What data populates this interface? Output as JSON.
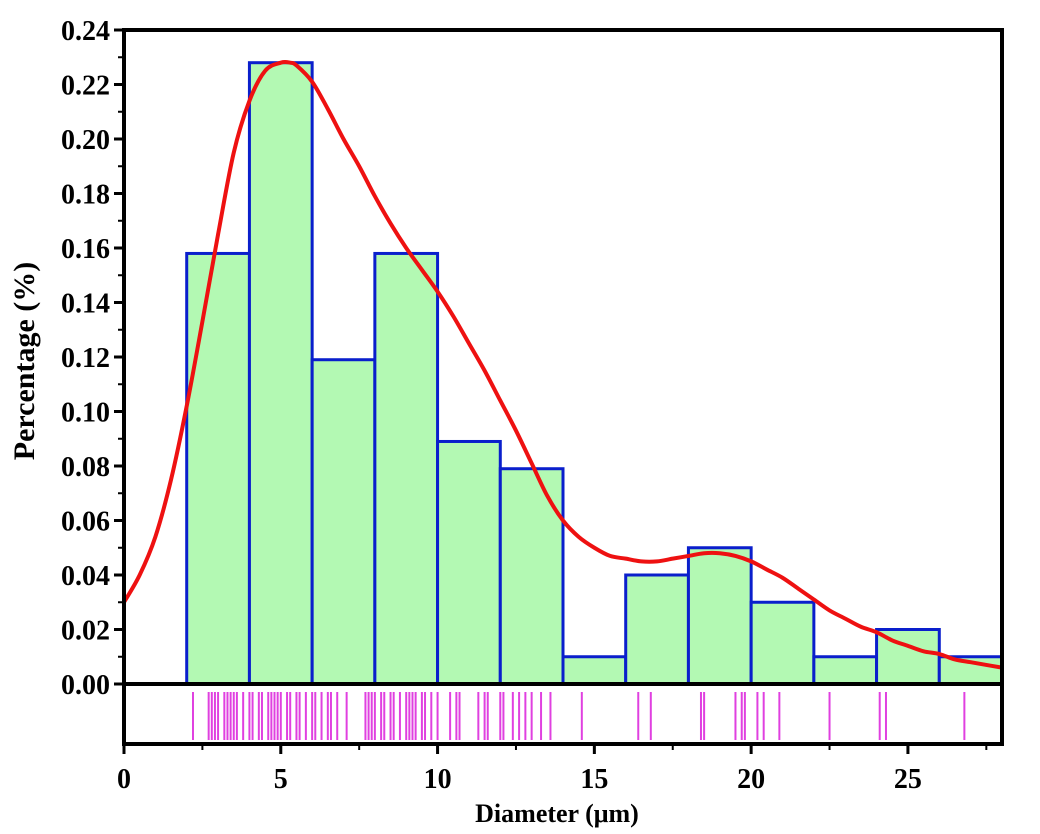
{
  "chart_data": {
    "type": "bar",
    "subtype": "histogram-with-kde-and-rug",
    "xlabel": "Diameter (μm)",
    "ylabel": "Percentage (%)",
    "xlim": [
      0,
      28
    ],
    "ylim": [
      0,
      0.24
    ],
    "x_ticks": [
      0,
      5,
      10,
      15,
      20,
      25
    ],
    "x_tick_labels": [
      "0",
      "5",
      "10",
      "15",
      "20",
      "25"
    ],
    "y_ticks": [
      0,
      0.02,
      0.04,
      0.06,
      0.08,
      0.1,
      0.12,
      0.14,
      0.16,
      0.18,
      0.2,
      0.22,
      0.24
    ],
    "y_tick_labels": [
      "0.00",
      "0.02",
      "0.04",
      "0.06",
      "0.08",
      "0.10",
      "0.12",
      "0.14",
      "0.16",
      "0.18",
      "0.20",
      "0.22",
      "0.24"
    ],
    "bin_width": 2,
    "bins": [
      {
        "start": 2,
        "end": 4,
        "value": 0.158
      },
      {
        "start": 4,
        "end": 6,
        "value": 0.228
      },
      {
        "start": 6,
        "end": 8,
        "value": 0.119
      },
      {
        "start": 8,
        "end": 10,
        "value": 0.158
      },
      {
        "start": 10,
        "end": 12,
        "value": 0.089
      },
      {
        "start": 12,
        "end": 14,
        "value": 0.079
      },
      {
        "start": 14,
        "end": 16,
        "value": 0.01
      },
      {
        "start": 16,
        "end": 18,
        "value": 0.04
      },
      {
        "start": 18,
        "end": 20,
        "value": 0.05
      },
      {
        "start": 20,
        "end": 22,
        "value": 0.03
      },
      {
        "start": 22,
        "end": 24,
        "value": 0.01
      },
      {
        "start": 24,
        "end": 26,
        "value": 0.02
      },
      {
        "start": 26,
        "end": 28,
        "value": 0.01
      }
    ],
    "kde_curve": {
      "x": [
        0,
        0.5,
        1,
        1.5,
        2,
        2.5,
        3,
        3.5,
        4,
        4.5,
        5,
        5.3,
        5.5,
        6,
        6.5,
        7,
        7.5,
        8,
        8.5,
        9,
        9.5,
        10,
        10.5,
        11,
        11.5,
        12,
        12.5,
        13,
        13.5,
        14,
        14.5,
        15,
        15.5,
        16,
        16.5,
        17,
        17.5,
        18,
        18.5,
        19,
        19.5,
        20,
        20.5,
        21,
        21.5,
        22,
        22.5,
        23,
        23.5,
        24,
        24.5,
        25,
        25.5,
        26,
        26.5,
        27,
        27.5,
        28
      ],
      "y": [
        0.03,
        0.04,
        0.054,
        0.075,
        0.102,
        0.133,
        0.165,
        0.195,
        0.214,
        0.225,
        0.228,
        0.228,
        0.227,
        0.221,
        0.211,
        0.2,
        0.19,
        0.179,
        0.169,
        0.16,
        0.152,
        0.144,
        0.135,
        0.125,
        0.115,
        0.104,
        0.093,
        0.081,
        0.069,
        0.06,
        0.054,
        0.05,
        0.047,
        0.046,
        0.045,
        0.045,
        0.046,
        0.047,
        0.048,
        0.048,
        0.047,
        0.045,
        0.042,
        0.039,
        0.035,
        0.031,
        0.027,
        0.024,
        0.021,
        0.019,
        0.016,
        0.014,
        0.012,
        0.011,
        0.009,
        0.008,
        0.007,
        0.006
      ],
      "color": "#ee1111"
    },
    "rug": [
      2.2,
      2.7,
      2.8,
      2.9,
      3.0,
      3.2,
      3.3,
      3.4,
      3.5,
      3.6,
      3.8,
      4.0,
      4.1,
      4.3,
      4.4,
      4.6,
      4.7,
      4.8,
      4.9,
      5.0,
      5.2,
      5.3,
      5.5,
      5.6,
      5.8,
      6.0,
      6.1,
      6.3,
      6.5,
      6.6,
      6.8,
      7.1,
      7.7,
      7.8,
      7.9,
      8.0,
      8.2,
      8.3,
      8.5,
      8.6,
      8.8,
      9.0,
      9.1,
      9.2,
      9.3,
      9.5,
      9.6,
      9.8,
      10.0,
      10.4,
      10.6,
      10.7,
      11.3,
      11.5,
      11.6,
      12.0,
      12.1,
      12.4,
      12.6,
      12.8,
      13.0,
      13.3,
      13.6,
      14.6,
      16.4,
      16.8,
      18.4,
      18.5,
      19.5,
      19.7,
      19.8,
      20.2,
      20.4,
      20.9,
      22.5,
      24.1,
      24.3,
      26.8
    ],
    "colors": {
      "bar_fill": "#b3f9b3",
      "bar_stroke": "#0a1fcc",
      "rug": "#e040e0",
      "axis": "#000000"
    }
  }
}
